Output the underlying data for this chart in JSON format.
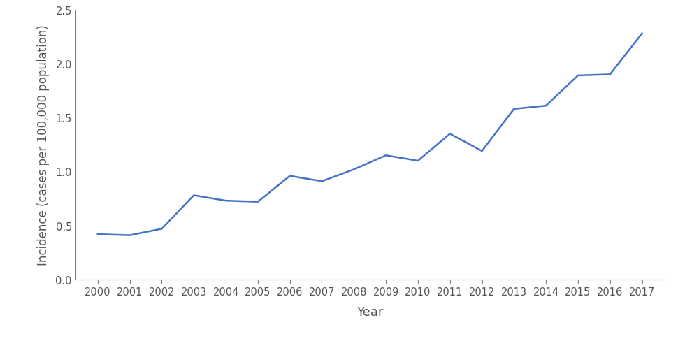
{
  "years": [
    2000,
    2001,
    2002,
    2003,
    2004,
    2005,
    2006,
    2007,
    2008,
    2009,
    2010,
    2011,
    2012,
    2013,
    2014,
    2015,
    2016,
    2017
  ],
  "values": [
    0.42,
    0.41,
    0.47,
    0.78,
    0.73,
    0.72,
    0.96,
    0.91,
    1.02,
    1.15,
    1.1,
    1.35,
    1.19,
    1.58,
    1.61,
    1.89,
    1.9,
    2.28
  ],
  "line_color": "#4472C4",
  "line_width": 1.8,
  "xlabel": "Year",
  "ylabel": "Incidence (cases per 100,000 population)",
  "xlim": [
    1999.3,
    2017.7
  ],
  "ylim": [
    0.0,
    2.5
  ],
  "yticks": [
    0.0,
    0.5,
    1.0,
    1.5,
    2.0,
    2.5
  ],
  "xticks": [
    2000,
    2001,
    2002,
    2003,
    2004,
    2005,
    2006,
    2007,
    2008,
    2009,
    2010,
    2011,
    2012,
    2013,
    2014,
    2015,
    2016,
    2017
  ],
  "background_color": "#ffffff",
  "spine_color": "#808080",
  "tick_label_fontsize": 10.5,
  "axis_label_fontsize": 12,
  "xlabel_fontsize": 13
}
